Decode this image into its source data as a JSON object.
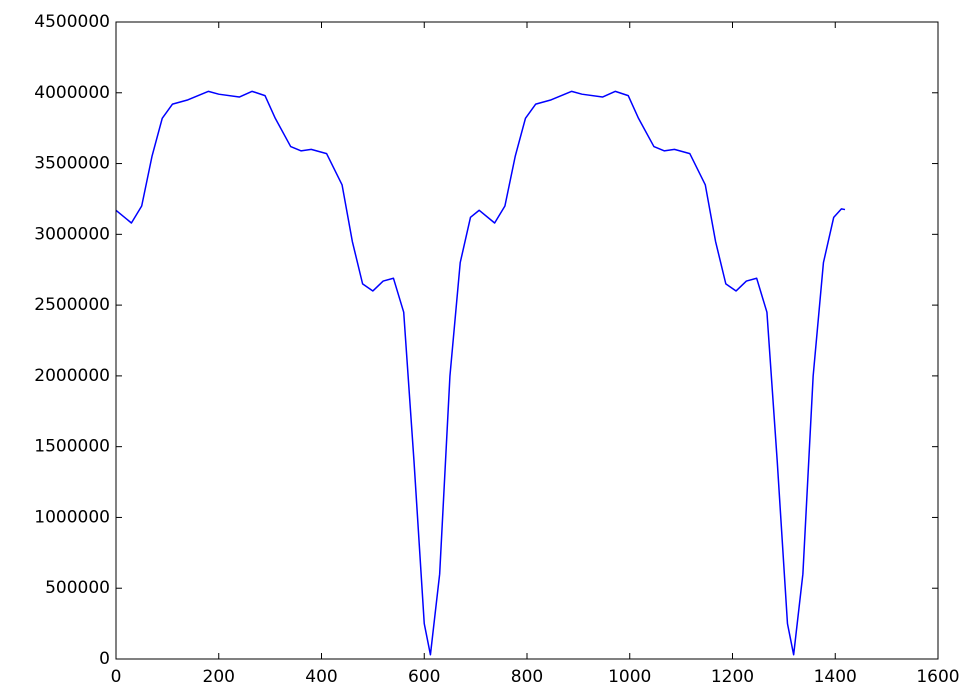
{
  "chart_data": {
    "type": "line",
    "x": [
      0,
      30,
      50,
      70,
      90,
      110,
      140,
      180,
      200,
      240,
      265,
      290,
      310,
      340,
      360,
      380,
      410,
      440,
      460,
      480,
      500,
      520,
      540,
      560,
      580,
      600,
      612,
      630,
      650,
      670,
      690,
      707,
      737,
      757,
      777,
      797,
      817,
      847,
      887,
      907,
      947,
      972,
      997,
      1017,
      1047,
      1067,
      1087,
      1117,
      1147,
      1167,
      1187,
      1207,
      1227,
      1247,
      1267,
      1287,
      1307,
      1319,
      1337,
      1357,
      1377,
      1397,
      1412,
      1419
    ],
    "series": [
      {
        "color": "#0000ff",
        "values": [
          3170000,
          3080000,
          3200000,
          3550000,
          3820000,
          3920000,
          3950000,
          4010000,
          3990000,
          3970000,
          4010000,
          3980000,
          3820000,
          3620000,
          3590000,
          3600000,
          3570000,
          3350000,
          2950000,
          2650000,
          2600000,
          2670000,
          2690000,
          2450000,
          1400000,
          250000,
          30000,
          600000,
          2000000,
          2800000,
          3120000,
          3170000,
          3080000,
          3200000,
          3550000,
          3820000,
          3920000,
          3950000,
          4010000,
          3990000,
          3970000,
          4010000,
          3980000,
          3820000,
          3620000,
          3590000,
          3600000,
          3570000,
          3350000,
          2950000,
          2650000,
          2600000,
          2670000,
          2690000,
          2450000,
          1400000,
          250000,
          30000,
          600000,
          2000000,
          2800000,
          3120000,
          3180000,
          3175000
        ]
      }
    ],
    "xlim": [
      0,
      1600
    ],
    "xticks": [
      0,
      200,
      400,
      600,
      800,
      1000,
      1200,
      1400,
      1600
    ],
    "ylim": [
      0,
      4500000
    ],
    "yticks": [
      0,
      500000,
      1000000,
      1500000,
      2000000,
      2500000,
      3000000,
      3500000,
      4000000,
      4500000
    ],
    "grid": false
  }
}
